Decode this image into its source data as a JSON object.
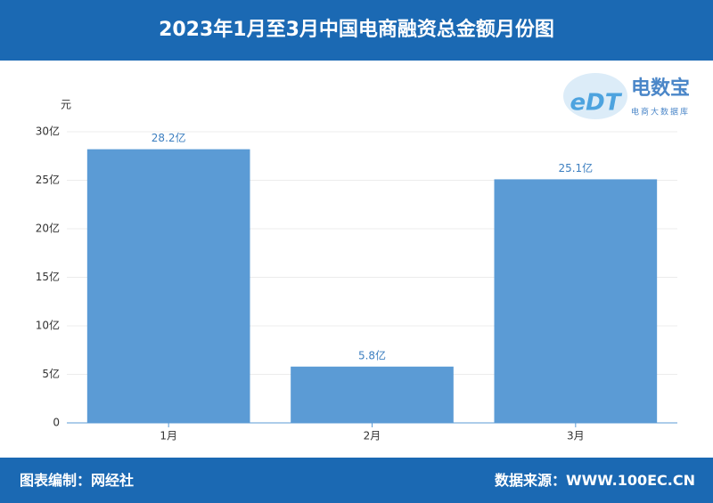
{
  "chart_data": {
    "type": "bar",
    "title": "2023年1月至3月中国电商融资总金额月份图",
    "y_label": "元",
    "categories": [
      "1月",
      "2月",
      "3月"
    ],
    "values": [
      28.2,
      5.8,
      25.1
    ],
    "value_labels": [
      "28.2亿",
      "5.8亿",
      "25.1亿"
    ],
    "color": "#5b9bd5",
    "ylim": [
      0,
      30
    ],
    "yticks": [
      0,
      {
        "value": 5,
        "label": "5亿"
      },
      {
        "value": 10,
        "label": "10亿"
      },
      {
        "value": 15,
        "label": "15亿"
      },
      {
        "value": 20,
        "label": "20亿"
      },
      {
        "value": 25,
        "label": "25亿"
      },
      {
        "value": 30,
        "label": "30亿"
      }
    ],
    "grid": true
  },
  "logo": {
    "mark": "eDT",
    "name": "电数宝",
    "sub": "电商大数据库"
  },
  "footer": {
    "left": "图表编制：网经社",
    "right": "数据来源：WWW.100EC.CN"
  }
}
